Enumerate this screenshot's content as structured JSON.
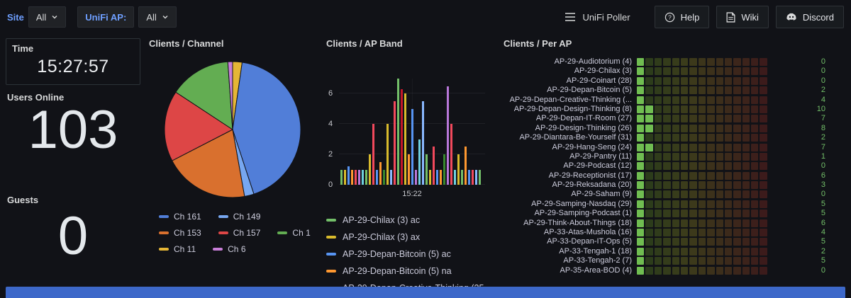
{
  "colors": {
    "accent_blue": "#6e9fff",
    "value_green": "#73bf69",
    "bottom_bar": "#3d68c9"
  },
  "topbar": {
    "site_label": "Site",
    "site_value": "All",
    "ap_label": "UniFi AP:",
    "ap_value": "All",
    "poller_label": "UniFi Poller",
    "help_label": "Help",
    "wiki_label": "Wiki",
    "discord_label": "Discord"
  },
  "stats": {
    "time": {
      "title": "Time",
      "value": "15:27:57"
    },
    "users": {
      "title": "Users Online",
      "value": "103"
    },
    "guests": {
      "title": "Guests",
      "value": "0"
    }
  },
  "chart_data": [
    {
      "type": "pie",
      "title": "Clients / Channel",
      "legend_position": "bottom",
      "items": [
        {
          "label": "Ch 161",
          "value": 38,
          "color": "#517ed8"
        },
        {
          "label": "Ch 149",
          "value": 2,
          "color": "#77a7f0"
        },
        {
          "label": "Ch 153",
          "value": 18,
          "color": "#d9702e"
        },
        {
          "label": "Ch 157",
          "value": 15,
          "color": "#dd4646"
        },
        {
          "label": "Ch 1",
          "value": 13,
          "color": "#63ad52"
        },
        {
          "label": "Ch 11",
          "value": 2,
          "color": "#e5b636"
        },
        {
          "label": "Ch 6",
          "value": 1,
          "color": "#c97ed9"
        }
      ],
      "draw_order": [
        5,
        0,
        1,
        2,
        3,
        4,
        6
      ]
    },
    {
      "type": "bar",
      "title": "Clients / AP Band",
      "ylim": [
        0,
        7
      ],
      "yticks": [
        0,
        2,
        4,
        6
      ],
      "xtick": "15:22",
      "bars": [
        {
          "c": "#73bf69",
          "h": 1
        },
        {
          "c": "#d9bb2c",
          "h": 1
        },
        {
          "c": "#5794f2",
          "h": 1.2
        },
        {
          "c": "#ff9830",
          "h": 1
        },
        {
          "c": "#f2495c",
          "h": 1
        },
        {
          "c": "#b877d9",
          "h": 1
        },
        {
          "c": "#6ed0e0",
          "h": 1
        },
        {
          "c": "#73bf69",
          "h": 1
        },
        {
          "c": "#d9bb2c",
          "h": 2
        },
        {
          "c": "#f2495c",
          "h": 4
        },
        {
          "c": "#5794f2",
          "h": 1
        },
        {
          "c": "#ff9830",
          "h": 1.5
        },
        {
          "c": "#37872d",
          "h": 1
        },
        {
          "c": "#d9bb2c",
          "h": 4
        },
        {
          "c": "#8ab8ff",
          "h": 1
        },
        {
          "c": "#f2495c",
          "h": 5.5
        },
        {
          "c": "#73bf69",
          "h": 7
        },
        {
          "c": "#c4162a",
          "h": 6.3
        },
        {
          "c": "#d9bb2c",
          "h": 6
        },
        {
          "c": "#ff9830",
          "h": 2
        },
        {
          "c": "#5794f2",
          "h": 5
        },
        {
          "c": "#b877d9",
          "h": 1
        },
        {
          "c": "#6ed0e0",
          "h": 3
        },
        {
          "c": "#8ab8ff",
          "h": 5.5
        },
        {
          "c": "#73bf69",
          "h": 2
        },
        {
          "c": "#d9bb2c",
          "h": 1
        },
        {
          "c": "#f2495c",
          "h": 2.5
        },
        {
          "c": "#5794f2",
          "h": 1
        },
        {
          "c": "#ff9830",
          "h": 1
        },
        {
          "c": "#37872d",
          "h": 2
        },
        {
          "c": "#b877d9",
          "h": 6.5
        },
        {
          "c": "#f2495c",
          "h": 4
        },
        {
          "c": "#6ed0e0",
          "h": 1
        },
        {
          "c": "#d9bb2c",
          "h": 2
        },
        {
          "c": "#73bf69",
          "h": 1
        },
        {
          "c": "#ff9830",
          "h": 2.5
        },
        {
          "c": "#5794f2",
          "h": 1
        },
        {
          "c": "#f2495c",
          "h": 1
        },
        {
          "c": "#8ab8ff",
          "h": 1
        },
        {
          "c": "#73bf69",
          "h": 1
        }
      ],
      "legend": [
        {
          "label": "AP-29-Chilax (3) ac",
          "color": "#73bf69"
        },
        {
          "label": "AP-29-Chilax (3) ax",
          "color": "#d9bb2c"
        },
        {
          "label": "AP-29-Depan-Bitcoin (5) ac",
          "color": "#5794f2"
        },
        {
          "label": "AP-29-Depan-Bitcoin (5) na",
          "color": "#ff9830"
        },
        {
          "label": "AP-29-Depan-Creative-Thinking (25",
          "color": "#f2495c"
        }
      ]
    },
    {
      "type": "heatmap",
      "title": "Clients / Per AP",
      "columns": 15,
      "rows": [
        {
          "name": "AP-29-Audiotorium (4)",
          "value": 0
        },
        {
          "name": "AP-29-Chilax (3)",
          "value": 0
        },
        {
          "name": "AP-29-Coinart (28)",
          "value": 0
        },
        {
          "name": "AP-29-Depan-Bitcoin (5)",
          "value": 2
        },
        {
          "name": "AP-29-Depan-Creative-Thinking (...",
          "value": 4
        },
        {
          "name": "AP-29-Depan-Design-Thinking (8)",
          "value": 10
        },
        {
          "name": "AP-29-Depan-IT-Room (27)",
          "value": 7
        },
        {
          "name": "AP-29-Design-Thinking (26)",
          "value": 8
        },
        {
          "name": "AP-29-Diantara-Be-Yourself (31)",
          "value": 2
        },
        {
          "name": "AP-29-Hang-Seng (24)",
          "value": 7
        },
        {
          "name": "AP-29-Pantry (11)",
          "value": 1
        },
        {
          "name": "AP-29-Podcast (12)",
          "value": 0
        },
        {
          "name": "AP-29-Receptionist (17)",
          "value": 6
        },
        {
          "name": "AP-29-Reksadana (20)",
          "value": 3
        },
        {
          "name": "AP-29-Saham (9)",
          "value": 0
        },
        {
          "name": "AP-29-Samping-Nasdaq (29)",
          "value": 5
        },
        {
          "name": "AP-29-Samping-Podcast (1)",
          "value": 5
        },
        {
          "name": "AP-29-Think-About-Things (18)",
          "value": 6
        },
        {
          "name": "AP-33-Atas-Mushola (16)",
          "value": 4
        },
        {
          "name": "AP-33-Depan-IT-Ops (5)",
          "value": 5
        },
        {
          "name": "AP-33-Tengah-1 (18)",
          "value": 2
        },
        {
          "name": "AP-33-Tengah-2 (7)",
          "value": 5
        },
        {
          "name": "AP-35-Area-BOD (4)",
          "value": 0
        }
      ]
    }
  ]
}
